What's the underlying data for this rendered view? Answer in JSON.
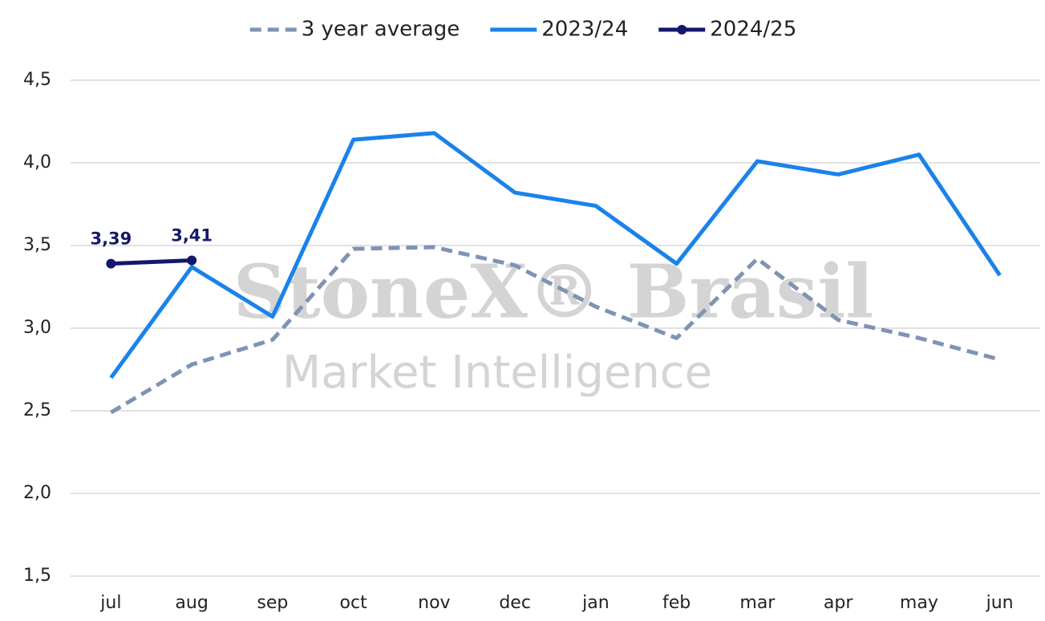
{
  "chart_data": {
    "type": "line",
    "watermark": [
      "StoneX® Brasil",
      "Market Intelligence"
    ],
    "categories": [
      "jul",
      "aug",
      "sep",
      "oct",
      "nov",
      "dec",
      "jan",
      "feb",
      "mar",
      "apr",
      "may",
      "jun"
    ],
    "series": [
      {
        "name": "3 year average",
        "color": "#7f93b3",
        "dashed": true,
        "values": [
          2.49,
          2.78,
          2.93,
          3.48,
          3.49,
          3.38,
          3.13,
          2.94,
          3.42,
          3.05,
          2.94,
          2.81
        ]
      },
      {
        "name": "2023/24",
        "color": "#1a82eb",
        "values": [
          2.7,
          3.37,
          3.07,
          4.14,
          4.18,
          3.82,
          3.74,
          3.39,
          4.01,
          3.93,
          4.05,
          3.32
        ]
      },
      {
        "name": "2024/25",
        "color": "#14186b",
        "markers": true,
        "values": [
          3.39,
          3.41,
          null,
          null,
          null,
          null,
          null,
          null,
          null,
          null,
          null,
          null
        ],
        "value_labels": [
          "3,39",
          "3,41",
          null,
          null,
          null,
          null,
          null,
          null,
          null,
          null,
          null,
          null
        ]
      }
    ],
    "ylim": [
      1.5,
      4.5
    ],
    "yticks": [
      {
        "value": 1.5,
        "label": "1,5"
      },
      {
        "value": 2.0,
        "label": "2,0"
      },
      {
        "value": 2.5,
        "label": "2,5"
      },
      {
        "value": 3.0,
        "label": "3,0"
      },
      {
        "value": 3.5,
        "label": "3,5"
      },
      {
        "value": 4.0,
        "label": "4,0"
      },
      {
        "value": 4.5,
        "label": "4,5"
      }
    ],
    "grid": true,
    "legend": "top"
  }
}
